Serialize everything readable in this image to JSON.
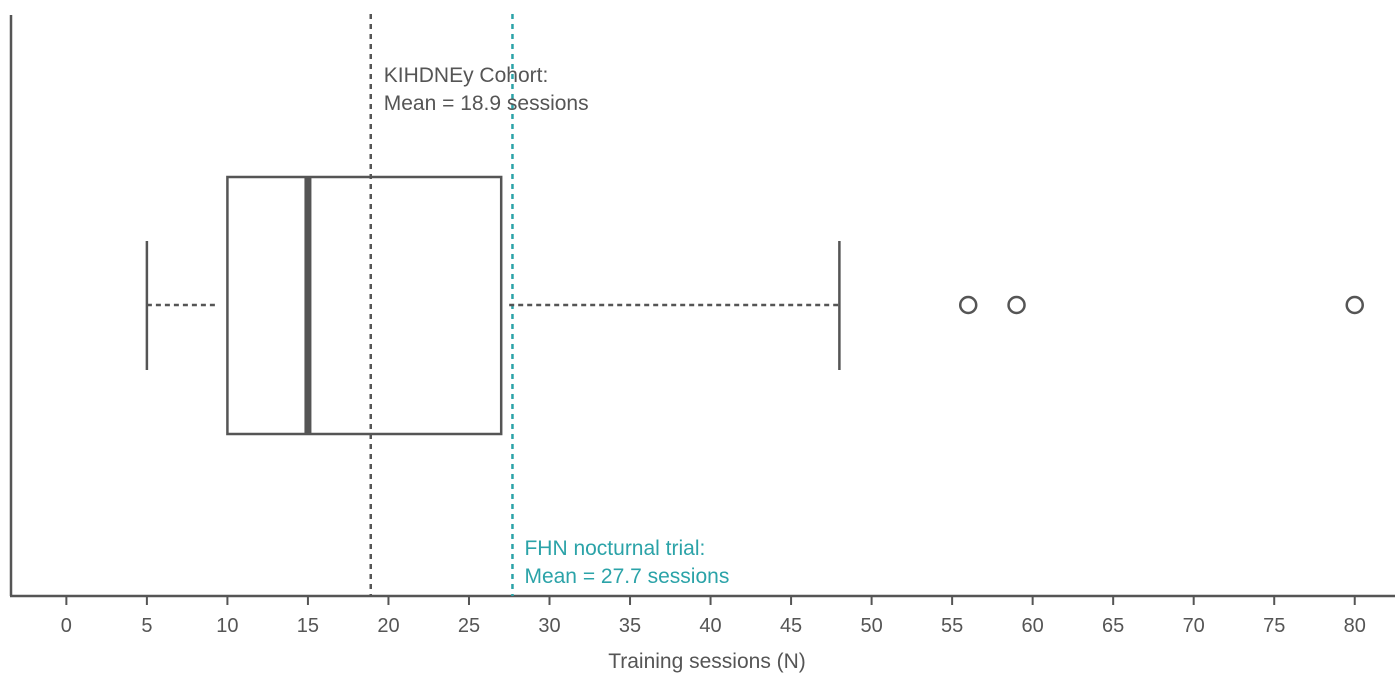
{
  "chart_data": {
    "type": "boxplot",
    "orientation": "horizontal",
    "xlabel": "Training sessions (N)",
    "ylabel": "",
    "xlim": [
      -3.5,
      82.5
    ],
    "xticks": [
      0,
      5,
      10,
      15,
      20,
      25,
      30,
      35,
      40,
      45,
      50,
      55,
      60,
      65,
      70,
      75,
      80
    ],
    "box": {
      "whisker_low": 5,
      "q1": 10,
      "median": 15,
      "q3": 27,
      "whisker_high": 48,
      "outliers": [
        56,
        59,
        80
      ]
    },
    "reference_lines": [
      {
        "value": 18.9,
        "color": "#555555",
        "label_line1": "KIHDNEy Cohort:",
        "label_line2": "Mean = 18.9 sessions",
        "label_position": "top"
      },
      {
        "value": 27.7,
        "color": "#2ba3a8",
        "label_line1": "FHN nocturnal trial:",
        "label_line2": "Mean = 27.7 sessions",
        "label_position": "bottom"
      }
    ],
    "colors": {
      "ink": "#555555",
      "axis": "#555555",
      "teal": "#2ba3a8"
    }
  }
}
